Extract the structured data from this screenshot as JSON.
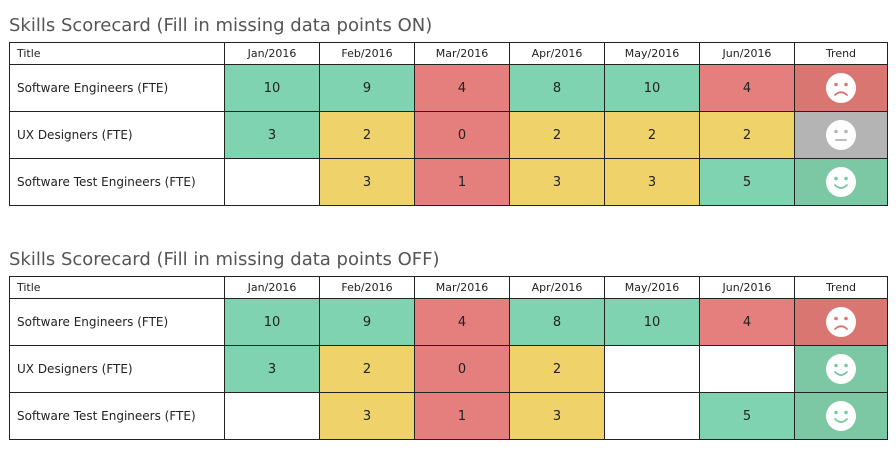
{
  "scorecards": [
    {
      "title": "Skills Scorecard (Fill in missing data points ON)",
      "columns": [
        "Title",
        "Jan/2016",
        "Feb/2016",
        "Mar/2016",
        "Apr/2016",
        "May/2016",
        "Jun/2016",
        "Trend"
      ],
      "rows": [
        {
          "title": "Software Engineers (FTE)",
          "cells": [
            {
              "value": "10",
              "status": "green"
            },
            {
              "value": "9",
              "status": "green"
            },
            {
              "value": "4",
              "status": "red"
            },
            {
              "value": "8",
              "status": "green"
            },
            {
              "value": "10",
              "status": "green"
            },
            {
              "value": "4",
              "status": "red"
            }
          ],
          "trend": "sad-face-icon",
          "trend_status": "red"
        },
        {
          "title": "UX Designers (FTE)",
          "cells": [
            {
              "value": "3",
              "status": "green"
            },
            {
              "value": "2",
              "status": "yellow"
            },
            {
              "value": "0",
              "status": "red"
            },
            {
              "value": "2",
              "status": "yellow"
            },
            {
              "value": "2",
              "status": "yellow"
            },
            {
              "value": "2",
              "status": "yellow"
            }
          ],
          "trend": "neutral-face-icon",
          "trend_status": "neutral"
        },
        {
          "title": "Software Test Engineers (FTE)",
          "cells": [
            {
              "value": "",
              "status": "empty"
            },
            {
              "value": "3",
              "status": "yellow"
            },
            {
              "value": "1",
              "status": "red"
            },
            {
              "value": "3",
              "status": "yellow"
            },
            {
              "value": "3",
              "status": "yellow"
            },
            {
              "value": "5",
              "status": "green"
            }
          ],
          "trend": "happy-face-icon",
          "trend_status": "green"
        }
      ]
    },
    {
      "title": "Skills Scorecard (Fill in missing data points OFF)",
      "columns": [
        "Title",
        "Jan/2016",
        "Feb/2016",
        "Mar/2016",
        "Apr/2016",
        "May/2016",
        "Jun/2016",
        "Trend"
      ],
      "rows": [
        {
          "title": "Software Engineers (FTE)",
          "cells": [
            {
              "value": "10",
              "status": "green"
            },
            {
              "value": "9",
              "status": "green"
            },
            {
              "value": "4",
              "status": "red"
            },
            {
              "value": "8",
              "status": "green"
            },
            {
              "value": "10",
              "status": "green"
            },
            {
              "value": "4",
              "status": "red"
            }
          ],
          "trend": "sad-face-icon",
          "trend_status": "red"
        },
        {
          "title": "UX Designers (FTE)",
          "cells": [
            {
              "value": "3",
              "status": "green"
            },
            {
              "value": "2",
              "status": "yellow"
            },
            {
              "value": "0",
              "status": "red"
            },
            {
              "value": "2",
              "status": "yellow"
            },
            {
              "value": "",
              "status": "empty"
            },
            {
              "value": "",
              "status": "empty"
            }
          ],
          "trend": "happy-face-icon",
          "trend_status": "green"
        },
        {
          "title": "Software Test Engineers (FTE)",
          "cells": [
            {
              "value": "",
              "status": "empty"
            },
            {
              "value": "3",
              "status": "yellow"
            },
            {
              "value": "1",
              "status": "red"
            },
            {
              "value": "3",
              "status": "yellow"
            },
            {
              "value": "",
              "status": "empty"
            },
            {
              "value": "5",
              "status": "green"
            }
          ],
          "trend": "happy-face-icon",
          "trend_status": "green"
        }
      ]
    }
  ],
  "colors": {
    "green": "#7fd3b0",
    "yellow": "#efd36a",
    "red": "#e47f7d",
    "trend_red": "#d97671",
    "trend_green": "#7cc7a4",
    "trend_neutral": "#b4b4b4",
    "border": "#222222",
    "heading": "#555555"
  }
}
